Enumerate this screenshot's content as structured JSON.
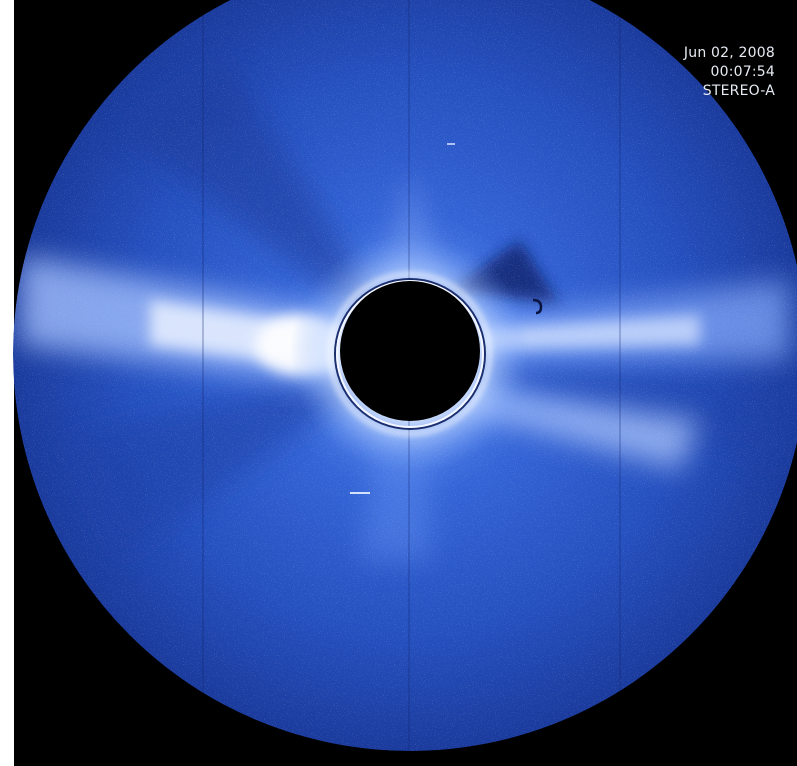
{
  "image": {
    "subject": "coronagraph-image",
    "colors": {
      "background": "#000000",
      "field_outer": "#1c3ea3",
      "field_mid": "#2f62d3",
      "corona_bright": "#ffffff",
      "occulter": "#000000"
    }
  },
  "overlay": {
    "date": "Jun 02, 2008",
    "time": "00:07:54",
    "observatory": "STEREO-A"
  }
}
